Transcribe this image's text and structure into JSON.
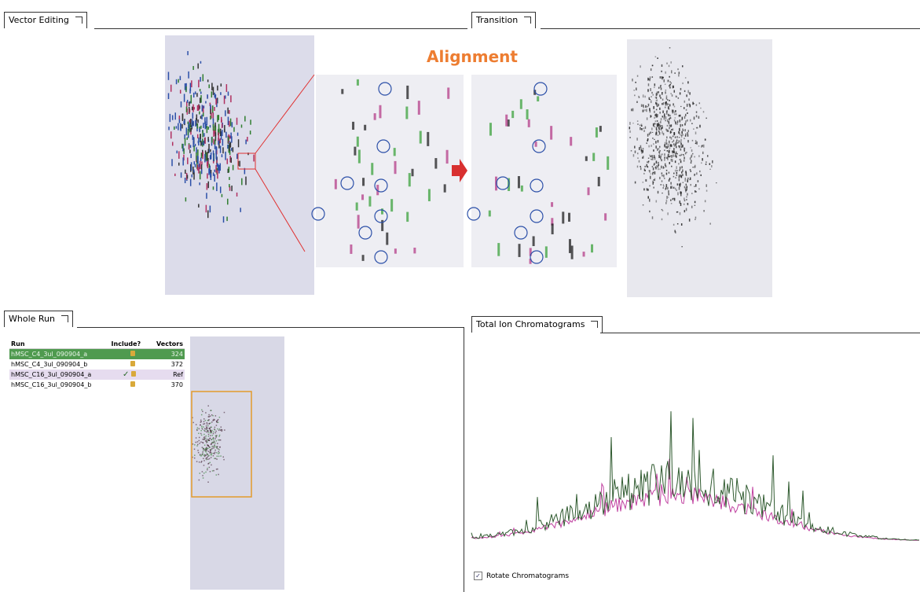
{
  "panels": {
    "vector_editing": {
      "title": "Vector Editing"
    },
    "transition": {
      "title": "Transition"
    },
    "alignment_label": "Alignment",
    "whole_run": {
      "title": "Whole Run",
      "table": {
        "headers": [
          "Run",
          "Include?",
          "Vectors"
        ],
        "rows": [
          [
            "hMSC_C4_3ul_090904_a",
            324
          ],
          [
            "hMSC_C4_3ul_090904_b",
            372
          ],
          [
            "hMSC_C16_3ul_090904_a",
            "Ref"
          ],
          [
            "hMSC_C16_3ul_090904_b",
            370
          ]
        ]
      }
    },
    "chromatograms": {
      "title": "Total Ion Chromatograms",
      "checkbox_label": "Rotate Chromatograms"
    }
  }
}
